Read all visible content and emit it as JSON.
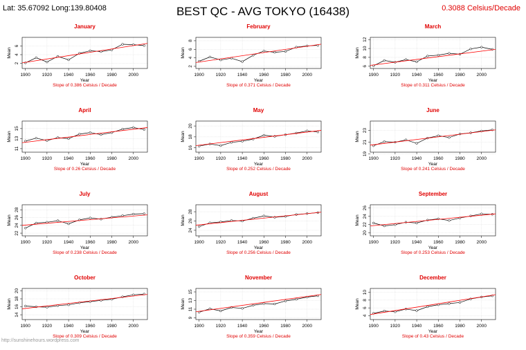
{
  "header": {
    "coords": "Lat: 35.67092  Long:139.80408",
    "title": "BEST QC - AVG TOKYO (16438)",
    "overall_slope": "0.3088 Celsius/Decade"
  },
  "watermark": "http://sunshinehours.wordpress.com",
  "colors": {
    "title": "#e00000",
    "trend": "#ff0000",
    "series": "#000000",
    "grid": "#d9d9d9"
  },
  "chart_data": [
    {
      "type": "line",
      "title": "January",
      "xlabel": "Year",
      "ylabel": "Mean",
      "xlim": [
        1897,
        2013
      ],
      "ylim": [
        0.8,
        8.0
      ],
      "yticks": [
        2,
        4,
        6
      ],
      "xticks": [
        1900,
        1920,
        1940,
        1960,
        1980,
        2000
      ],
      "slope_text": "Slope of 0.386  Celsius / Decade",
      "trend": [
        2.1,
        6.6
      ],
      "grid": true,
      "series": [
        {
          "x": [
            1900,
            1910,
            1920,
            1930,
            1940,
            1950,
            1960,
            1970,
            1980,
            1990,
            2000,
            2010
          ],
          "y": [
            2.1,
            3.3,
            2.3,
            3.6,
            2.8,
            4.3,
            4.9,
            4.7,
            5.1,
            6.4,
            6.3,
            6.1
          ]
        }
      ]
    },
    {
      "type": "line",
      "title": "February",
      "xlabel": "Year",
      "ylabel": "Mean",
      "xlim": [
        1897,
        2013
      ],
      "ylim": [
        1.5,
        8.8
      ],
      "yticks": [
        2,
        4,
        6,
        8
      ],
      "xticks": [
        1900,
        1920,
        1940,
        1960,
        1980,
        2000
      ],
      "slope_text": "Slope of 0.371  Celsius / Decade",
      "trend": [
        2.9,
        7.2
      ],
      "grid": true,
      "series": [
        {
          "x": [
            1900,
            1910,
            1920,
            1930,
            1940,
            1950,
            1960,
            1970,
            1980,
            1990,
            2000,
            2010
          ],
          "y": [
            3.2,
            4.2,
            3.5,
            3.9,
            3.1,
            4.6,
            5.6,
            5.3,
            5.5,
            6.5,
            6.8,
            6.9
          ]
        }
      ]
    },
    {
      "type": "line",
      "title": "March",
      "xlabel": "Year",
      "ylabel": "Mean",
      "xlim": [
        1897,
        2013
      ],
      "ylim": [
        5.5,
        12.5
      ],
      "yticks": [
        6,
        8,
        10,
        12
      ],
      "xticks": [
        1900,
        1920,
        1940,
        1960,
        1980,
        2000
      ],
      "slope_text": "Slope of 0.311  Celsius / Decade",
      "trend": [
        6.2,
        9.8
      ],
      "grid": true,
      "series": [
        {
          "x": [
            1900,
            1910,
            1920,
            1930,
            1940,
            1950,
            1960,
            1970,
            1980,
            1990,
            2000,
            2010
          ],
          "y": [
            6.1,
            7.3,
            6.9,
            7.5,
            7.0,
            8.3,
            8.5,
            8.9,
            8.7,
            9.9,
            10.3,
            9.8
          ]
        }
      ]
    },
    {
      "type": "line",
      "title": "April",
      "xlabel": "Year",
      "ylabel": "Mean",
      "xlim": [
        1897,
        2013
      ],
      "ylim": [
        10.3,
        16.5
      ],
      "yticks": [
        11,
        13,
        15
      ],
      "xticks": [
        1900,
        1920,
        1940,
        1960,
        1980,
        2000
      ],
      "slope_text": "Slope of 0.26  Celsius / Decade",
      "trend": [
        12.2,
        15.2
      ],
      "grid": true,
      "series": [
        {
          "x": [
            1900,
            1910,
            1920,
            1930,
            1940,
            1950,
            1960,
            1970,
            1980,
            1990,
            2000,
            2010
          ],
          "y": [
            12.5,
            13.1,
            12.6,
            13.2,
            13.0,
            13.9,
            14.2,
            13.8,
            14.2,
            14.9,
            15.2,
            14.8
          ]
        }
      ]
    },
    {
      "type": "line",
      "title": "May",
      "xlabel": "Year",
      "ylabel": "Mean",
      "xlim": [
        1897,
        2013
      ],
      "ylim": [
        15.2,
        20.9
      ],
      "yticks": [
        16,
        18,
        20
      ],
      "xticks": [
        1900,
        1920,
        1940,
        1960,
        1980,
        2000
      ],
      "slope_text": "Slope of 0.252  Celsius / Decade",
      "trend": [
        16.4,
        19.2
      ],
      "grid": true,
      "series": [
        {
          "x": [
            1900,
            1910,
            1920,
            1930,
            1940,
            1950,
            1960,
            1970,
            1980,
            1990,
            2000,
            2010
          ],
          "y": [
            16.3,
            16.7,
            16.4,
            17.0,
            17.2,
            17.6,
            18.3,
            18.1,
            18.4,
            18.7,
            19.1,
            18.9
          ]
        }
      ]
    },
    {
      "type": "line",
      "title": "June",
      "xlabel": "Year",
      "ylabel": "Mean",
      "xlim": [
        1897,
        2013
      ],
      "ylim": [
        19.3,
        24.6
      ],
      "yticks": [
        19,
        21,
        23
      ],
      "xticks": [
        1900,
        1920,
        1940,
        1960,
        1980,
        2000
      ],
      "slope_text": "Slope of 0.241  Celsius / Decade",
      "trend": [
        20.5,
        23.1
      ],
      "grid": true,
      "series": [
        {
          "x": [
            1900,
            1910,
            1920,
            1930,
            1940,
            1950,
            1960,
            1970,
            1980,
            1990,
            2000,
            2010
          ],
          "y": [
            20.4,
            21.1,
            21.0,
            21.4,
            20.8,
            21.7,
            22.1,
            21.8,
            22.4,
            22.6,
            22.9,
            23.1
          ]
        }
      ]
    },
    {
      "type": "line",
      "title": "July",
      "xlabel": "Year",
      "ylabel": "Mean",
      "xlim": [
        1897,
        2013
      ],
      "ylim": [
        21.3,
        29.3
      ],
      "yticks": [
        22,
        24,
        26,
        28
      ],
      "xticks": [
        1900,
        1920,
        1940,
        1960,
        1980,
        2000
      ],
      "slope_text": "Slope of 0.238  Celsius / Decade",
      "trend": [
        24.0,
        26.7
      ],
      "grid": true,
      "series": [
        {
          "x": [
            1900,
            1910,
            1920,
            1930,
            1940,
            1950,
            1960,
            1970,
            1980,
            1990,
            2000,
            2010
          ],
          "y": [
            23.3,
            24.6,
            24.8,
            25.2,
            24.4,
            25.4,
            25.9,
            25.6,
            26.1,
            26.5,
            26.9,
            27.0
          ]
        }
      ]
    },
    {
      "type": "line",
      "title": "August",
      "xlabel": "Year",
      "ylabel": "Mean",
      "xlim": [
        1897,
        2013
      ],
      "ylim": [
        22.8,
        29.5
      ],
      "yticks": [
        24,
        26,
        28
      ],
      "xticks": [
        1900,
        1920,
        1940,
        1960,
        1980,
        2000
      ],
      "slope_text": "Slope of 0.256  Celsius / Decade",
      "trend": [
        25.1,
        27.9
      ],
      "grid": true,
      "series": [
        {
          "x": [
            1900,
            1910,
            1920,
            1930,
            1940,
            1950,
            1960,
            1970,
            1980,
            1990,
            2000,
            2010
          ],
          "y": [
            24.8,
            25.6,
            25.8,
            26.1,
            26.0,
            26.6,
            27.1,
            26.8,
            27.0,
            27.4,
            27.6,
            27.8
          ]
        }
      ]
    },
    {
      "type": "line",
      "title": "September",
      "xlabel": "Year",
      "ylabel": "Mean",
      "xlim": [
        1897,
        2013
      ],
      "ylim": [
        19.3,
        26.8
      ],
      "yticks": [
        20,
        22,
        24,
        26
      ],
      "xticks": [
        1900,
        1920,
        1940,
        1960,
        1980,
        2000
      ],
      "slope_text": "Slope of 0.253  Celsius / Decade",
      "trend": [
        21.7,
        24.6
      ],
      "grid": true,
      "series": [
        {
          "x": [
            1900,
            1910,
            1920,
            1930,
            1940,
            1950,
            1960,
            1970,
            1980,
            1990,
            2000,
            2010
          ],
          "y": [
            22.4,
            21.7,
            22.0,
            22.6,
            22.4,
            23.1,
            23.4,
            23.0,
            23.6,
            24.1,
            24.6,
            24.5
          ]
        }
      ]
    },
    {
      "type": "line",
      "title": "October",
      "xlabel": "Year",
      "ylabel": "Mean",
      "xlim": [
        1897,
        2013
      ],
      "ylim": [
        12.8,
        20.6
      ],
      "yticks": [
        14,
        16,
        18,
        20
      ],
      "xticks": [
        1900,
        1920,
        1940,
        1960,
        1980,
        2000
      ],
      "slope_text": "Slope of 0.309  Celsius / Decade",
      "trend": [
        15.5,
        19.1
      ],
      "grid": true,
      "series": [
        {
          "x": [
            1900,
            1910,
            1920,
            1930,
            1940,
            1950,
            1960,
            1970,
            1980,
            1990,
            2000,
            2010
          ],
          "y": [
            16.2,
            16.0,
            15.9,
            16.3,
            16.5,
            17.0,
            17.3,
            17.6,
            17.9,
            18.5,
            19.0,
            19.2
          ]
        }
      ]
    },
    {
      "type": "line",
      "title": "November",
      "xlabel": "Year",
      "ylabel": "Mean",
      "xlim": [
        1897,
        2013
      ],
      "ylim": [
        8.6,
        15.8
      ],
      "yticks": [
        9,
        11,
        13,
        15
      ],
      "xticks": [
        1900,
        1920,
        1940,
        1960,
        1980,
        2000
      ],
      "slope_text": "Slope of 0.359  Celsius / Decade",
      "trend": [
        10.4,
        14.4
      ],
      "grid": true,
      "series": [
        {
          "x": [
            1900,
            1910,
            1920,
            1930,
            1940,
            1950,
            1960,
            1970,
            1980,
            1990,
            2000,
            2010
          ],
          "y": [
            10.3,
            11.1,
            10.6,
            11.4,
            11.2,
            11.9,
            12.3,
            12.2,
            12.9,
            13.3,
            13.8,
            14.1
          ]
        }
      ]
    },
    {
      "type": "line",
      "title": "December",
      "xlabel": "Year",
      "ylabel": "Mean",
      "xlim": [
        1897,
        2013
      ],
      "ylim": [
        3.0,
        11.0
      ],
      "yticks": [
        4,
        6,
        8,
        10
      ],
      "xticks": [
        1900,
        1920,
        1940,
        1960,
        1980,
        2000
      ],
      "slope_text": "Slope of 0.43  Celsius / Decade",
      "trend": [
        4.3,
        9.4
      ],
      "grid": true,
      "series": [
        {
          "x": [
            1900,
            1910,
            1920,
            1930,
            1940,
            1950,
            1960,
            1970,
            1980,
            1990,
            2000,
            2010
          ],
          "y": [
            4.6,
            5.2,
            5.0,
            5.7,
            5.3,
            6.3,
            6.8,
            7.1,
            7.4,
            8.3,
            8.8,
            9.1
          ]
        }
      ]
    }
  ]
}
